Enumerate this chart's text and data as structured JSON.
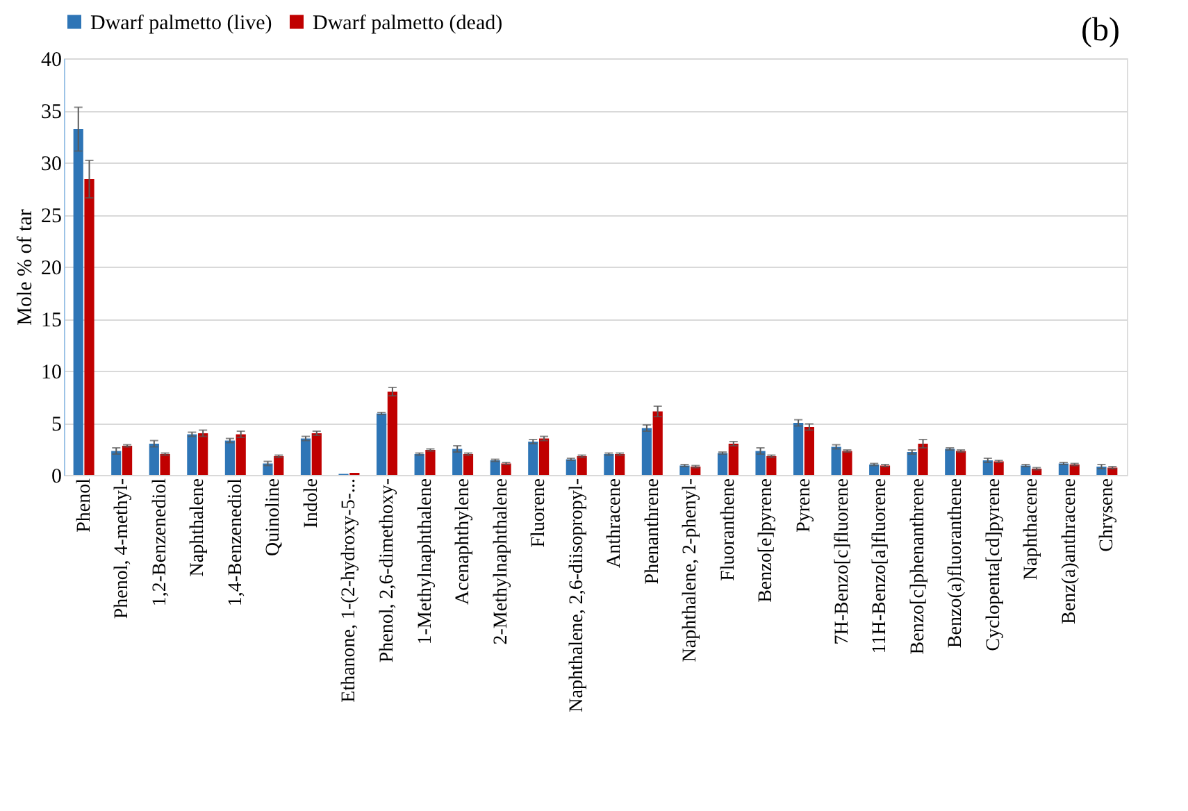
{
  "chart_data": {
    "type": "bar",
    "ylabel": "Mole % of tar",
    "annotations": [
      "(b)"
    ],
    "categories": [
      "Phenol",
      "Phenol, 4-methyl-",
      "1,2-Benzenediol",
      "Naphthalene",
      "1,4-Benzenediol",
      "Quinoline",
      "Indole",
      "Ethanone, 1-(2-hydroxy-5-...",
      "Phenol, 2,6-dimethoxy-",
      "1-Methylnaphthalene",
      "Acenaphthylene",
      "2-Methylnaphthalene",
      "Fluorene",
      "Naphthalene, 2,6-diisopropyl-",
      "Anthracene",
      "Phenanthrene",
      "Naphthalene, 2-phenyl-",
      "Fluoranthene",
      "Benzo[e]pyrene",
      "Pyrene",
      "7H-Benzo[c]fluorene",
      "11H-Benzo[a]fluorene",
      "Benzo[c]phenanthrene",
      "Benzo(a)fluoranthene",
      "Cyclopenta[cd]pyrene",
      "Naphthacene",
      "Benz(a)anthracene",
      "Chrysene"
    ],
    "series": [
      {
        "name": "Dwarf palmetto (live)",
        "color": "#2e75b6",
        "values": [
          33.2,
          2.3,
          3.0,
          3.9,
          3.3,
          1.1,
          3.5,
          0.1,
          5.9,
          2.0,
          2.5,
          1.4,
          3.2,
          1.5,
          2.0,
          4.5,
          0.9,
          2.1,
          2.3,
          5.0,
          2.7,
          1.0,
          2.2,
          2.5,
          1.4,
          0.9,
          1.1,
          0.8
        ],
        "errors": [
          2.1,
          0.3,
          0.3,
          0.2,
          0.2,
          0.2,
          0.2,
          null,
          0.1,
          0.1,
          0.3,
          0.1,
          0.2,
          0.1,
          0.1,
          0.3,
          0.1,
          0.1,
          0.3,
          0.3,
          0.2,
          0.1,
          0.2,
          0.1,
          0.2,
          0.1,
          0.1,
          0.2
        ]
      },
      {
        "name": "Dwarf palmetto (dead)",
        "color": "#c00000",
        "values": [
          28.4,
          2.8,
          2.0,
          4.0,
          3.9,
          1.8,
          4.0,
          0.2,
          8.0,
          2.4,
          2.0,
          1.1,
          3.5,
          1.8,
          2.0,
          6.1,
          0.8,
          3.0,
          1.8,
          4.6,
          2.3,
          0.9,
          3.0,
          2.3,
          1.3,
          0.6,
          1.0,
          0.7
        ],
        "errors": [
          1.8,
          0.1,
          0.1,
          0.3,
          0.3,
          0.1,
          0.2,
          null,
          0.4,
          0.1,
          0.1,
          0.1,
          0.2,
          0.1,
          0.1,
          0.5,
          0.1,
          0.2,
          0.1,
          0.3,
          0.1,
          0.1,
          0.4,
          0.1,
          0.1,
          0.1,
          0.1,
          0.1
        ]
      }
    ],
    "ylim": [
      0,
      40
    ],
    "yticks": [
      0,
      5,
      10,
      15,
      20,
      25,
      30,
      35,
      40
    ],
    "grid": "y",
    "legend": "top"
  }
}
